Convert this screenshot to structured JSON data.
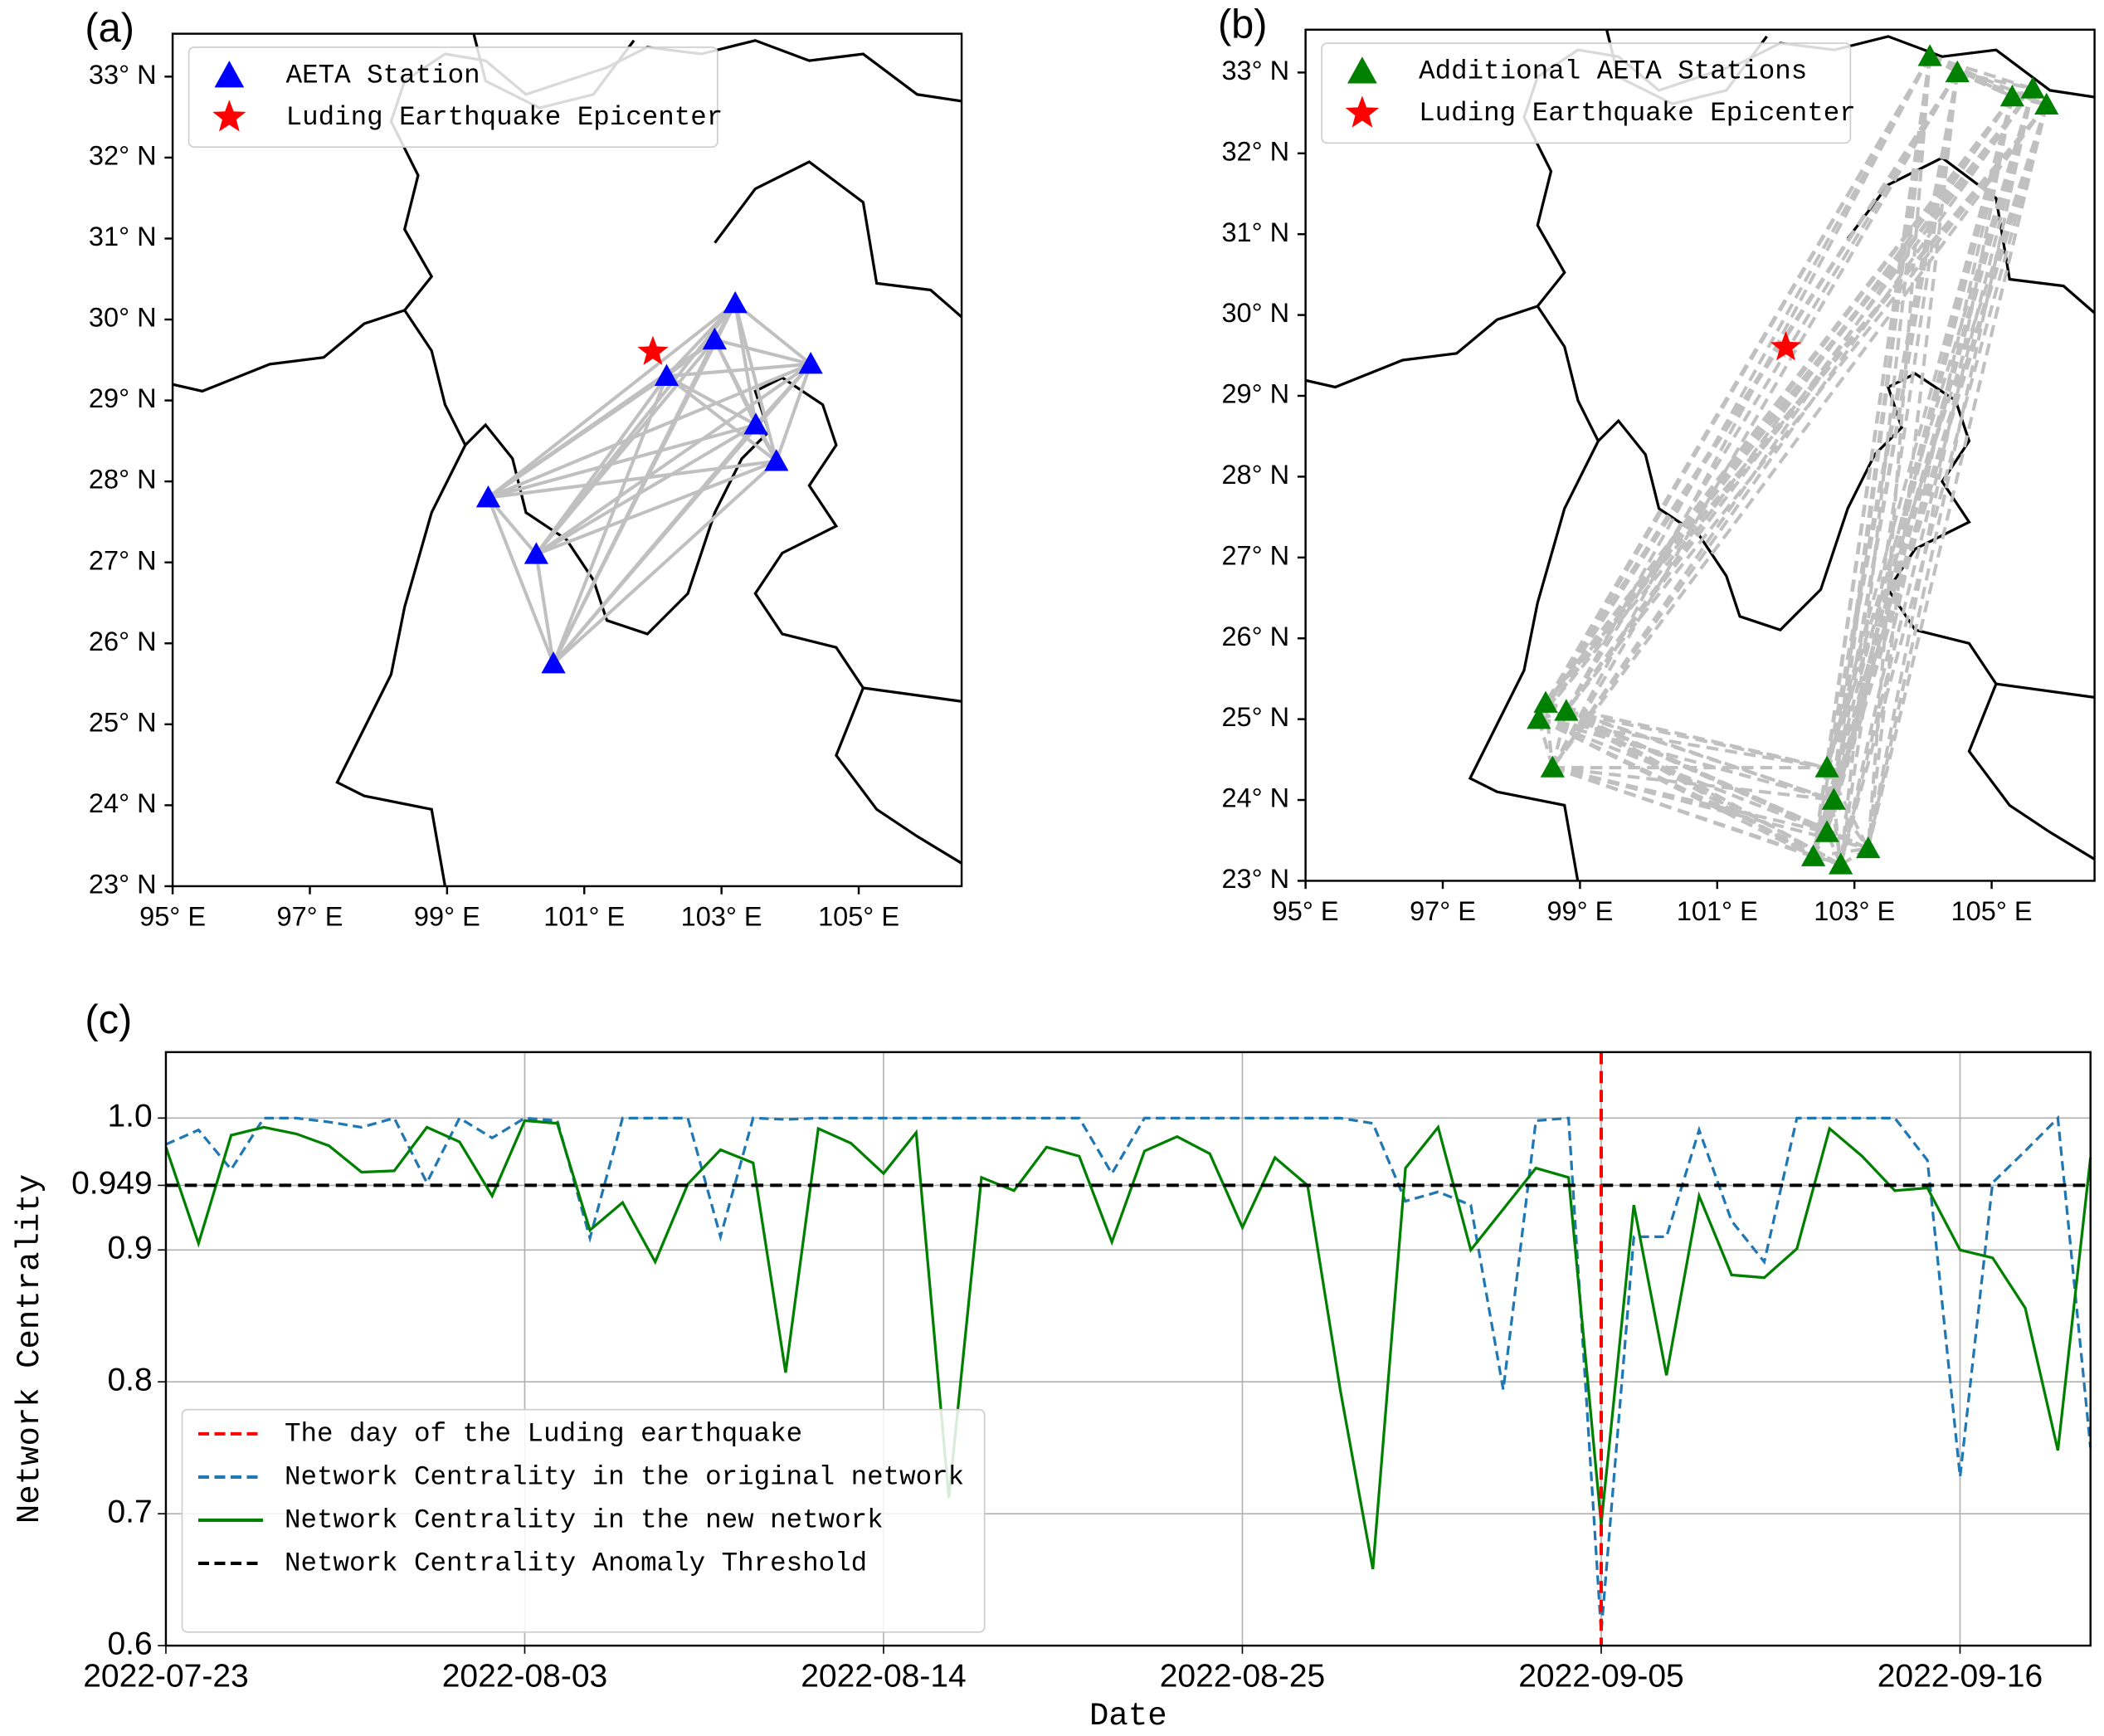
{
  "chart_data": [
    {
      "type": "map",
      "panel_label": "(a)",
      "xlim": [
        95,
        106.5
      ],
      "ylim": [
        23,
        33.53
      ],
      "xticks": [
        {
          "value": 95,
          "label": "95° E"
        },
        {
          "value": 97,
          "label": "97° E"
        },
        {
          "value": 99,
          "label": "99° E"
        },
        {
          "value": 101,
          "label": "101° E"
        },
        {
          "value": 103,
          "label": "103° E"
        },
        {
          "value": 105,
          "label": "105° E"
        }
      ],
      "yticks": [
        {
          "value": 23,
          "label": "23° N"
        },
        {
          "value": 24,
          "label": "24° N"
        },
        {
          "value": 25,
          "label": "25° N"
        },
        {
          "value": 26,
          "label": "26° N"
        },
        {
          "value": 27,
          "label": "27° N"
        },
        {
          "value": 28,
          "label": "28° N"
        },
        {
          "value": 29,
          "label": "29° N"
        },
        {
          "value": 30,
          "label": "30° N"
        },
        {
          "value": 31,
          "label": "31° N"
        },
        {
          "value": 32,
          "label": "32° N"
        },
        {
          "value": 33,
          "label": "33° N"
        }
      ],
      "stations": {
        "name": "AETA Station",
        "color": "#0000ff",
        "x": [
          99.6,
          100.3,
          100.55,
          102.2,
          102.9,
          103.2,
          103.5,
          103.8,
          104.3
        ],
        "y": [
          27.8,
          27.1,
          25.75,
          29.3,
          29.75,
          30.2,
          28.7,
          28.25,
          29.45
        ]
      },
      "epicenter": {
        "name": "Luding Earthquake Epicenter",
        "color": "#ff0000",
        "x": 102.0,
        "y": 29.6
      },
      "link_dashed": false
    },
    {
      "type": "map",
      "panel_label": "(b)",
      "xlim": [
        95,
        106.5
      ],
      "ylim": [
        23,
        33.53
      ],
      "xticks": [
        {
          "value": 95,
          "label": "95° E"
        },
        {
          "value": 97,
          "label": "97° E"
        },
        {
          "value": 99,
          "label": "99° E"
        },
        {
          "value": 101,
          "label": "101° E"
        },
        {
          "value": 103,
          "label": "103° E"
        },
        {
          "value": 105,
          "label": "105° E"
        }
      ],
      "yticks": [
        {
          "value": 23,
          "label": "23° N"
        },
        {
          "value": 24,
          "label": "24° N"
        },
        {
          "value": 25,
          "label": "25° N"
        },
        {
          "value": 26,
          "label": "26° N"
        },
        {
          "value": 27,
          "label": "27° N"
        },
        {
          "value": 28,
          "label": "28° N"
        },
        {
          "value": 29,
          "label": "29° N"
        },
        {
          "value": 30,
          "label": "30° N"
        },
        {
          "value": 31,
          "label": "31° N"
        },
        {
          "value": 32,
          "label": "32° N"
        },
        {
          "value": 33,
          "label": "33° N"
        }
      ],
      "stations": {
        "name": "Additional AETA Stations",
        "color": "#008000",
        "x": [
          104.1,
          104.5,
          105.3,
          105.6,
          105.8,
          98.4,
          98.5,
          98.6,
          98.8,
          102.6,
          102.7,
          102.4,
          102.8,
          103.2,
          102.6
        ],
        "y": [
          33.2,
          33.0,
          32.7,
          32.8,
          32.6,
          25.0,
          25.2,
          24.4,
          25.1,
          24.4,
          24.0,
          23.3,
          23.2,
          23.4,
          23.6
        ]
      },
      "epicenter": {
        "name": "Luding Earthquake Epicenter",
        "color": "#ff0000",
        "x": 102.0,
        "y": 29.6
      },
      "link_dashed": true
    },
    {
      "type": "line",
      "panel_label": "(c)",
      "xlabel": "Date",
      "ylabel": "Network Centrality",
      "grid": true,
      "x": [
        "2022-07-23",
        "2022-07-24",
        "2022-07-25",
        "2022-07-26",
        "2022-07-27",
        "2022-07-28",
        "2022-07-29",
        "2022-07-30",
        "2022-07-31",
        "2022-08-01",
        "2022-08-02",
        "2022-08-03",
        "2022-08-04",
        "2022-08-05",
        "2022-08-06",
        "2022-08-07",
        "2022-08-08",
        "2022-08-09",
        "2022-08-10",
        "2022-08-11",
        "2022-08-12",
        "2022-08-13",
        "2022-08-14",
        "2022-08-15",
        "2022-08-16",
        "2022-08-17",
        "2022-08-18",
        "2022-08-19",
        "2022-08-20",
        "2022-08-21",
        "2022-08-22",
        "2022-08-23",
        "2022-08-24",
        "2022-08-25",
        "2022-08-26",
        "2022-08-27",
        "2022-08-28",
        "2022-08-29",
        "2022-08-30",
        "2022-08-31",
        "2022-09-01",
        "2022-09-02",
        "2022-09-03",
        "2022-09-04",
        "2022-09-05",
        "2022-09-06",
        "2022-09-07",
        "2022-09-08",
        "2022-09-09",
        "2022-09-10",
        "2022-09-11",
        "2022-09-12",
        "2022-09-13",
        "2022-09-14",
        "2022-09-15",
        "2022-09-16",
        "2022-09-17",
        "2022-09-18",
        "2022-09-19",
        "2022-09-20"
      ],
      "xlim": [
        "2022-07-23",
        "2022-09-20"
      ],
      "xticks": [
        "2022-07-23",
        "2022-08-03",
        "2022-08-14",
        "2022-08-25",
        "2022-09-05",
        "2022-09-16"
      ],
      "ylim": [
        0.6,
        1.05
      ],
      "yticks": [
        0.6,
        0.7,
        0.8,
        0.9,
        0.949,
        {
          "value": 1,
          "label": "1.0"
        }
      ],
      "event": {
        "name": "The day of the Luding earthquake",
        "x": "2022-09-05",
        "color": "#ff0000"
      },
      "series": [
        {
          "name": "Network Centrality in the original network",
          "color": "#1f77b4",
          "dashed": true,
          "values": [
            0.98,
            0.991,
            0.961,
            1.0,
            1.0,
            0.997,
            0.993,
            1.0,
            0.951,
            1.0,
            0.985,
            1.0,
            0.998,
            0.909,
            1.0,
            1.0,
            1.0,
            0.91,
            1.0,
            0.999,
            1.0,
            1.0,
            1.0,
            1.0,
            1.0,
            1.0,
            1.0,
            1.0,
            1.0,
            0.958,
            1.0,
            1.0,
            1.0,
            1.0,
            1.0,
            1.0,
            1.0,
            0.996,
            0.937,
            0.944,
            0.934,
            0.794,
            0.998,
            1.0,
            0.61,
            0.91,
            0.91,
            0.991,
            0.922,
            0.891,
            1.0,
            1.0,
            1.0,
            1.0,
            0.968,
            0.728,
            0.951,
            0.975,
            1.0,
            0.75
          ]
        },
        {
          "name": "Network Centrality in the new network",
          "color": "#008000",
          "dashed": false,
          "values": [
            0.978,
            0.905,
            0.987,
            0.993,
            0.988,
            0.979,
            0.959,
            0.96,
            0.993,
            0.982,
            0.941,
            0.998,
            0.996,
            0.915,
            0.936,
            0.891,
            0.95,
            0.976,
            0.966,
            0.807,
            0.992,
            0.981,
            0.958,
            0.989,
            0.712,
            0.955,
            0.945,
            0.978,
            0.971,
            0.906,
            0.975,
            0.986,
            0.973,
            0.917,
            0.97,
            0.949,
            0.794,
            0.658,
            0.962,
            0.993,
            0.9,
            0.931,
            0.962,
            0.955,
            0.692,
            0.934,
            0.805,
            0.941,
            0.881,
            0.879,
            0.901,
            0.992,
            0.971,
            0.945,
            0.947,
            0.9,
            0.894,
            0.856,
            0.748,
            0.97
          ]
        }
      ],
      "threshold": {
        "name": "Network Centrality Anomaly Threshold",
        "value": 0.949,
        "color": "#000000"
      }
    }
  ]
}
